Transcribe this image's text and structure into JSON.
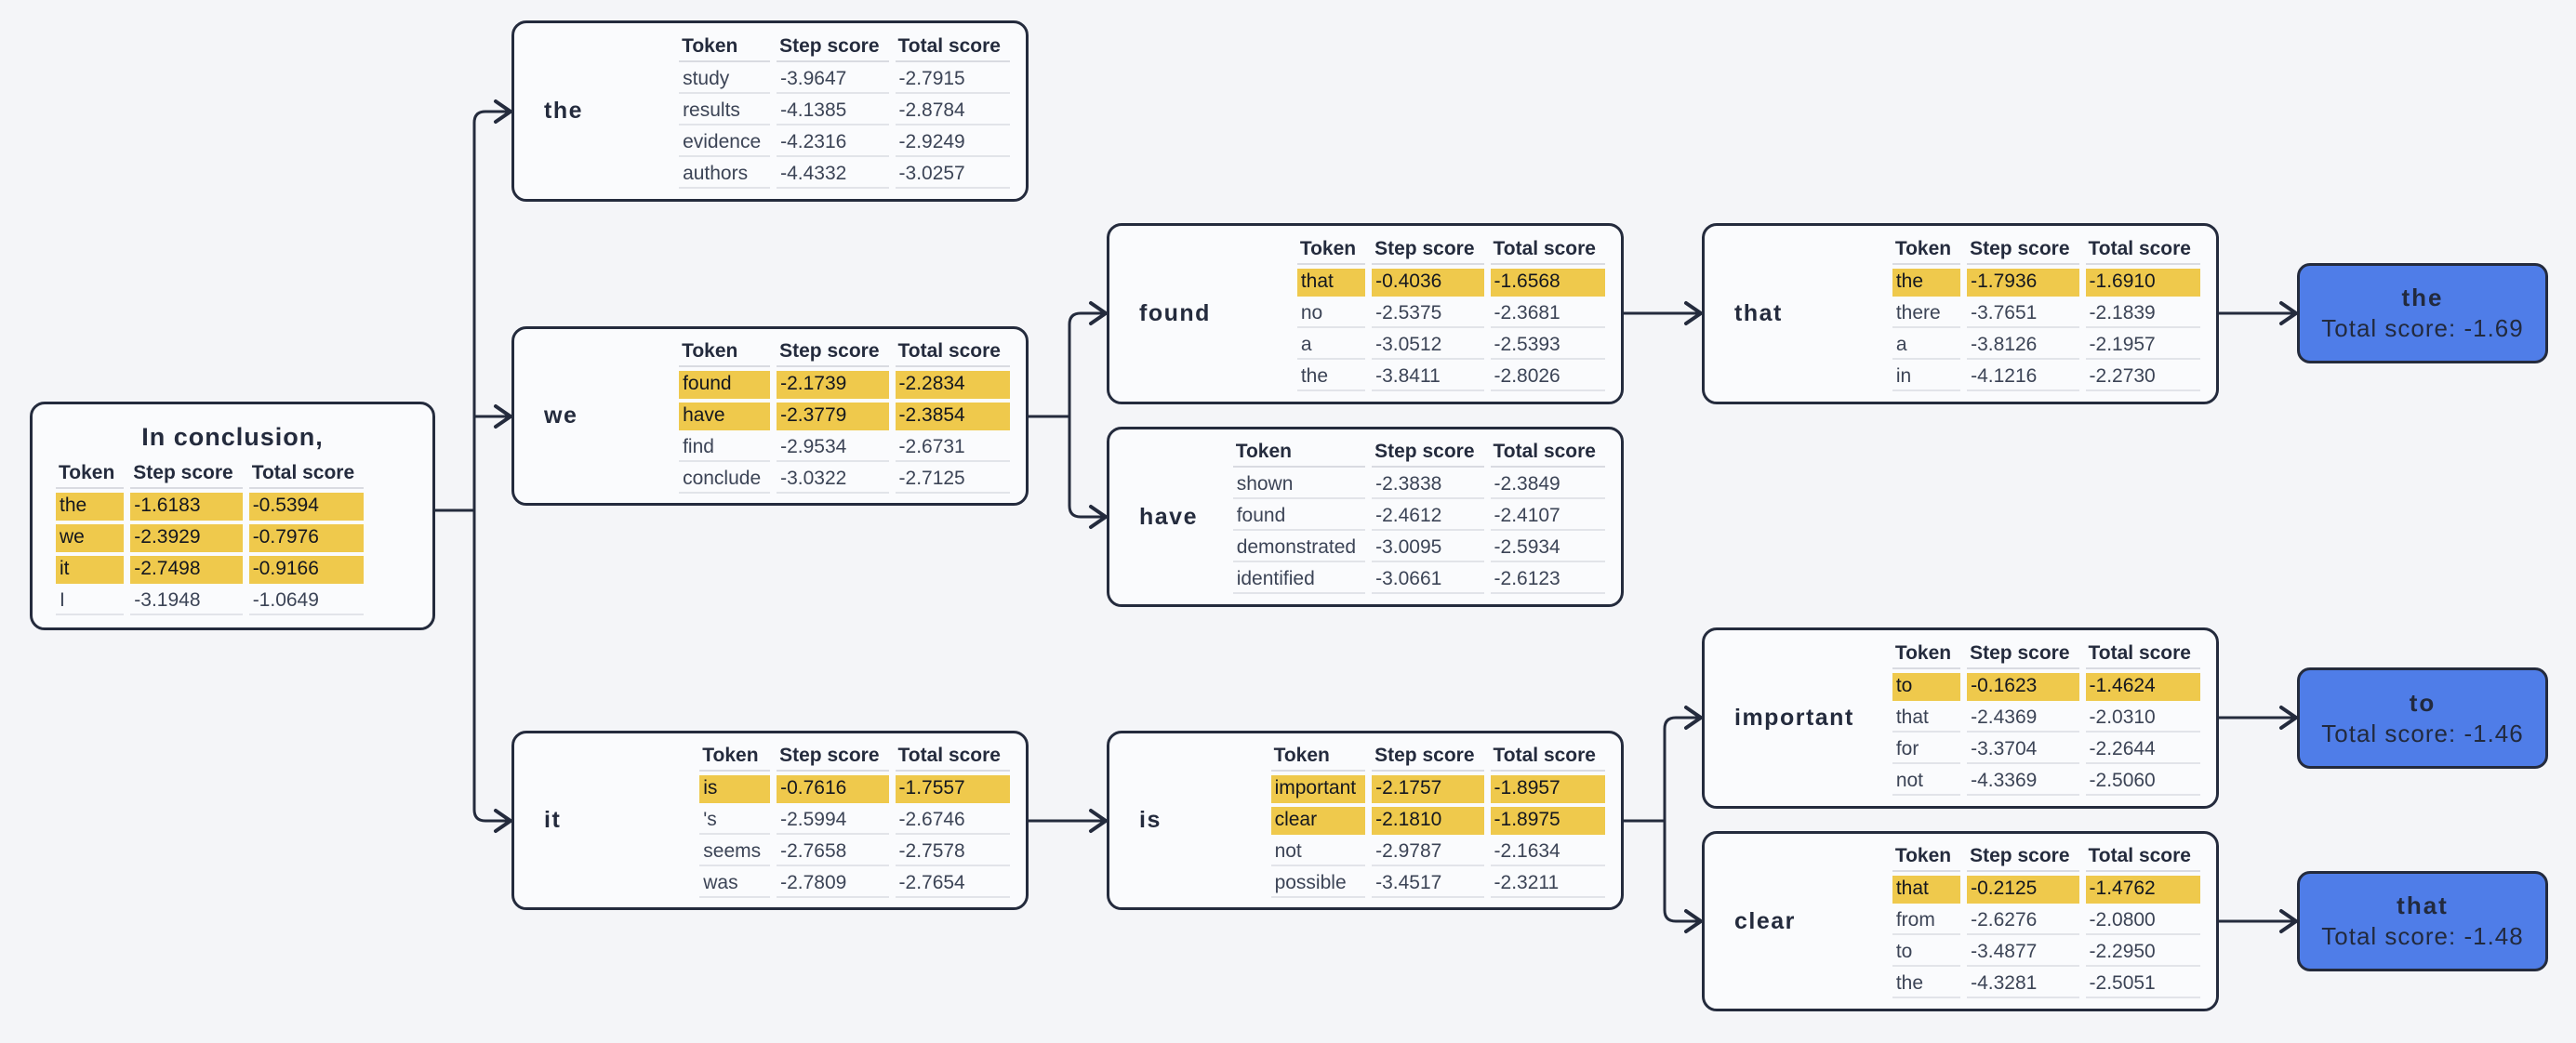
{
  "colors": {
    "background": "#f4f5f8",
    "node_background": "#fafbfd",
    "ink": "#242b3d",
    "row_text": "#3c4456",
    "highlight_yellow": "#efc94c",
    "highlight_text": "#14171f",
    "result_blue": "#4f7de8",
    "result_text": "#222a3e",
    "separator": "#e2e4e9"
  },
  "table_headers": [
    "Token",
    "Step score",
    "Total score"
  ],
  "root": {
    "title": "In conclusion,",
    "rows": [
      {
        "token": "the",
        "step": "-1.6183",
        "total": "-0.5394",
        "highlight": true
      },
      {
        "token": "we",
        "step": "-2.3929",
        "total": "-0.7976",
        "highlight": true
      },
      {
        "token": "it",
        "step": "-2.7498",
        "total": "-0.9166",
        "highlight": true
      },
      {
        "token": "I",
        "step": "-3.1948",
        "total": "-1.0649",
        "highlight": false
      }
    ]
  },
  "nodes": [
    {
      "id": "the",
      "label": "the",
      "rows": [
        {
          "token": "study",
          "step": "-3.9647",
          "total": "-2.7915",
          "highlight": false
        },
        {
          "token": "results",
          "step": "-4.1385",
          "total": "-2.8784",
          "highlight": false
        },
        {
          "token": "evidence",
          "step": "-4.2316",
          "total": "-2.9249",
          "highlight": false
        },
        {
          "token": "authors",
          "step": "-4.4332",
          "total": "-3.0257",
          "highlight": false
        }
      ]
    },
    {
      "id": "we",
      "label": "we",
      "rows": [
        {
          "token": "found",
          "step": "-2.1739",
          "total": "-2.2834",
          "highlight": true
        },
        {
          "token": "have",
          "step": "-2.3779",
          "total": "-2.3854",
          "highlight": true
        },
        {
          "token": "find",
          "step": "-2.9534",
          "total": "-2.6731",
          "highlight": false
        },
        {
          "token": "conclude",
          "step": "-3.0322",
          "total": "-2.7125",
          "highlight": false
        }
      ]
    },
    {
      "id": "found",
      "label": "found",
      "rows": [
        {
          "token": "that",
          "step": "-0.4036",
          "total": "-1.6568",
          "highlight": true
        },
        {
          "token": "no",
          "step": "-2.5375",
          "total": "-2.3681",
          "highlight": false
        },
        {
          "token": "a",
          "step": "-3.0512",
          "total": "-2.5393",
          "highlight": false
        },
        {
          "token": "the",
          "step": "-3.8411",
          "total": "-2.8026",
          "highlight": false
        }
      ]
    },
    {
      "id": "that",
      "label": "that",
      "rows": [
        {
          "token": "the",
          "step": "-1.7936",
          "total": "-1.6910",
          "highlight": true
        },
        {
          "token": "there",
          "step": "-3.7651",
          "total": "-2.1839",
          "highlight": false
        },
        {
          "token": "a",
          "step": "-3.8126",
          "total": "-2.1957",
          "highlight": false
        },
        {
          "token": "in",
          "step": "-4.1216",
          "total": "-2.2730",
          "highlight": false
        }
      ]
    },
    {
      "id": "have",
      "label": "have",
      "rows": [
        {
          "token": "shown",
          "step": "-2.3838",
          "total": "-2.3849",
          "highlight": false
        },
        {
          "token": "found",
          "step": "-2.4612",
          "total": "-2.4107",
          "highlight": false
        },
        {
          "token": "demonstrated",
          "step": "-3.0095",
          "total": "-2.5934",
          "highlight": false
        },
        {
          "token": "identified",
          "step": "-3.0661",
          "total": "-2.6123",
          "highlight": false
        }
      ]
    },
    {
      "id": "it",
      "label": "it",
      "rows": [
        {
          "token": "is",
          "step": "-0.7616",
          "total": "-1.7557",
          "highlight": true
        },
        {
          "token": "'s",
          "step": "-2.5994",
          "total": "-2.6746",
          "highlight": false
        },
        {
          "token": "seems",
          "step": "-2.7658",
          "total": "-2.7578",
          "highlight": false
        },
        {
          "token": "was",
          "step": "-2.7809",
          "total": "-2.7654",
          "highlight": false
        }
      ]
    },
    {
      "id": "is",
      "label": "is",
      "rows": [
        {
          "token": "important",
          "step": "-2.1757",
          "total": "-1.8957",
          "highlight": true
        },
        {
          "token": "clear",
          "step": "-2.1810",
          "total": "-1.8975",
          "highlight": true
        },
        {
          "token": "not",
          "step": "-2.9787",
          "total": "-2.1634",
          "highlight": false
        },
        {
          "token": "possible",
          "step": "-3.4517",
          "total": "-2.3211",
          "highlight": false
        }
      ]
    },
    {
      "id": "important",
      "label": "important",
      "rows": [
        {
          "token": "to",
          "step": "-0.1623",
          "total": "-1.4624",
          "highlight": true
        },
        {
          "token": "that",
          "step": "-2.4369",
          "total": "-2.0310",
          "highlight": false
        },
        {
          "token": "for",
          "step": "-3.3704",
          "total": "-2.2644",
          "highlight": false
        },
        {
          "token": "not",
          "step": "-4.3369",
          "total": "-2.5060",
          "highlight": false
        }
      ]
    },
    {
      "id": "clear",
      "label": "clear",
      "rows": [
        {
          "token": "that",
          "step": "-0.2125",
          "total": "-1.4762",
          "highlight": true
        },
        {
          "token": "from",
          "step": "-2.6276",
          "total": "-2.0800",
          "highlight": false
        },
        {
          "token": "to",
          "step": "-3.4877",
          "total": "-2.2950",
          "highlight": false
        },
        {
          "token": "the",
          "step": "-4.3281",
          "total": "-2.5051",
          "highlight": false
        }
      ]
    }
  ],
  "results": [
    {
      "id": "the",
      "token": "the",
      "score_label": "Total score: -1.69"
    },
    {
      "id": "to",
      "token": "to",
      "score_label": "Total score: -1.46"
    },
    {
      "id": "that",
      "token": "that",
      "score_label": "Total score: -1.48"
    }
  ]
}
